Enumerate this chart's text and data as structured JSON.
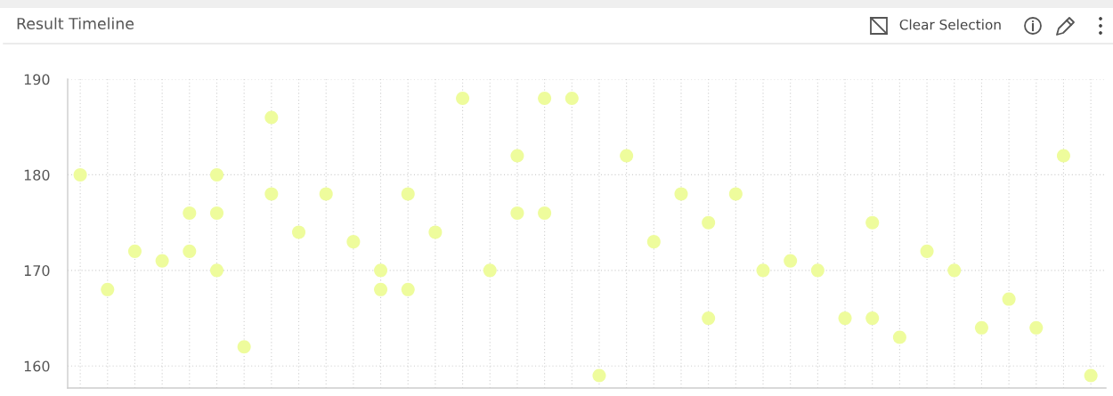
{
  "chart_data": {
    "type": "scatter",
    "title": "Result Timeline",
    "annotations": [
      "Clear Selection"
    ],
    "categories": [
      null,
      null,
      null,
      null,
      null,
      null,
      null,
      null,
      null,
      null,
      null,
      null,
      null,
      null,
      null,
      null,
      null,
      null,
      null,
      null,
      null,
      null,
      null,
      null,
      null,
      null,
      null,
      null,
      null,
      null,
      null,
      null,
      null,
      null,
      null,
      null,
      null,
      null
    ],
    "series": [
      {
        "color": "#eefc9c",
        "values": [
          180,
          168,
          172,
          171,
          176,
          180,
          162,
          186,
          174,
          178,
          173,
          170,
          178,
          174,
          188,
          170,
          182,
          188,
          188,
          159,
          182,
          173,
          178,
          175,
          178,
          170,
          171,
          170,
          165,
          175,
          163,
          172,
          170,
          164,
          167,
          164,
          182,
          159
        ]
      },
      {
        "color": "#eefc9c",
        "values": [
          null,
          null,
          null,
          null,
          172,
          176,
          null,
          178,
          null,
          null,
          null,
          168,
          168,
          null,
          null,
          null,
          176,
          176,
          null,
          null,
          null,
          null,
          null,
          165,
          null,
          null,
          null,
          null,
          null,
          165,
          null,
          null,
          null,
          null,
          null,
          null,
          null,
          null
        ]
      },
      {
        "color": "#eefc9c",
        "values": [
          null,
          null,
          null,
          null,
          null,
          170,
          null,
          null,
          null,
          null,
          null,
          null,
          null,
          null,
          null,
          null,
          null,
          null,
          null,
          null,
          null,
          null,
          null,
          null,
          null,
          null,
          null,
          null,
          null,
          null,
          null,
          null,
          null,
          null,
          null,
          null,
          null,
          null
        ]
      }
    ],
    "ylim": [
      157.7,
      190
    ],
    "yticks": [
      160,
      170,
      180,
      190
    ],
    "grid": true,
    "marker": "circle",
    "tick_labels": "y"
  }
}
